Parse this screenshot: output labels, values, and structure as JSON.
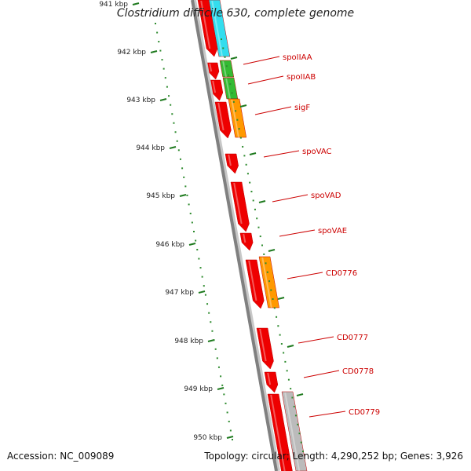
{
  "map": {
    "title": "Clostridium difficile 630, complete genome",
    "accession_text": "Accession: NC_009089",
    "summary_text": "Topology: circular; Length: 4,290,252 bp; Genes: 3,926",
    "colors": {
      "background": "#ffffff",
      "backbone": "#808080",
      "ruler_dots": "#2e8b2e",
      "ruler_tick": "#1f7a1f",
      "tick_label": "#222222",
      "gene_label": "#cc0000",
      "gene_line": "#cc0000",
      "cds": "#ee0000",
      "feature_cyan": "#33ddee",
      "feature_green": "#33bb33",
      "feature_orange": "#ff9900",
      "feature_gray": "#bbbbbb"
    }
  },
  "ruler": {
    "ticks": [
      "941 kbp",
      "942 kbp",
      "943 kbp",
      "944 kbp",
      "945 kbp",
      "946 kbp",
      "947 kbp",
      "948 kbp",
      "949 kbp",
      "950 kbp"
    ]
  },
  "genes": [
    {
      "label": "spoIIAA"
    },
    {
      "label": "spoIIAB"
    },
    {
      "label": "sigF"
    },
    {
      "label": "spoVAC"
    },
    {
      "label": "spoVAD"
    },
    {
      "label": "spoVAE"
    },
    {
      "label": "CD0776"
    },
    {
      "label": "CD0777"
    },
    {
      "label": "CD0778"
    },
    {
      "label": "CD0779"
    }
  ]
}
